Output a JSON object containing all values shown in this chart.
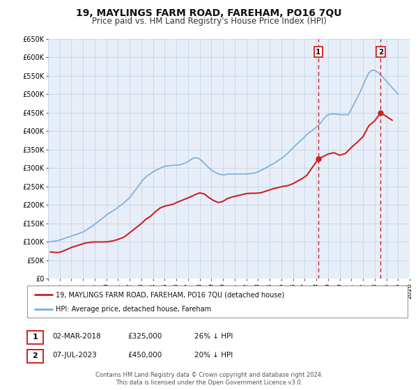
{
  "title": "19, MAYLINGS FARM ROAD, FAREHAM, PO16 7QU",
  "subtitle": "Price paid vs. HM Land Registry's House Price Index (HPI)",
  "xlim": [
    1995,
    2026
  ],
  "ylim": [
    0,
    650000
  ],
  "yticks": [
    0,
    50000,
    100000,
    150000,
    200000,
    250000,
    300000,
    350000,
    400000,
    450000,
    500000,
    550000,
    600000,
    650000
  ],
  "ytick_labels": [
    "£0",
    "£50K",
    "£100K",
    "£150K",
    "£200K",
    "£250K",
    "£300K",
    "£350K",
    "£400K",
    "£450K",
    "£500K",
    "£550K",
    "£600K",
    "£650K"
  ],
  "xticks": [
    1995,
    1996,
    1997,
    1998,
    1999,
    2000,
    2001,
    2002,
    2003,
    2004,
    2005,
    2006,
    2007,
    2008,
    2009,
    2010,
    2011,
    2012,
    2013,
    2014,
    2015,
    2016,
    2017,
    2018,
    2019,
    2020,
    2021,
    2022,
    2023,
    2024,
    2025,
    2026
  ],
  "hpi_color": "#7aaddb",
  "price_color": "#cc2222",
  "grid_color": "#c8d8e8",
  "bg_color": "#e8eef8",
  "legend_label_price": "19, MAYLINGS FARM ROAD, FAREHAM, PO16 7QU (detached house)",
  "legend_label_hpi": "HPI: Average price, detached house, Fareham",
  "ann1_date": 2018.17,
  "ann1_price": 325000,
  "ann1_label": "1",
  "ann1_text_date": "02-MAR-2018",
  "ann1_text_price": "£325,000",
  "ann1_text_pct": "26% ↓ HPI",
  "ann2_date": 2023.52,
  "ann2_price": 450000,
  "ann2_label": "2",
  "ann2_text_date": "07-JUL-2023",
  "ann2_text_price": "£450,000",
  "ann2_text_pct": "20% ↓ HPI",
  "footer1": "Contains HM Land Registry data © Crown copyright and database right 2024.",
  "footer2": "This data is licensed under the Open Government Licence v3.0.",
  "title_fontsize": 10,
  "subtitle_fontsize": 8.5,
  "hpi_x": [
    1995,
    1995.25,
    1995.5,
    1995.75,
    1996,
    1996.25,
    1996.5,
    1996.75,
    1997,
    1997.25,
    1997.5,
    1997.75,
    1998,
    1998.25,
    1998.5,
    1998.75,
    1999,
    1999.25,
    1999.5,
    1999.75,
    2000,
    2000.25,
    2000.5,
    2000.75,
    2001,
    2001.25,
    2001.5,
    2001.75,
    2002,
    2002.25,
    2002.5,
    2002.75,
    2003,
    2003.25,
    2003.5,
    2003.75,
    2004,
    2004.25,
    2004.5,
    2004.75,
    2005,
    2005.25,
    2005.5,
    2005.75,
    2006,
    2006.25,
    2006.5,
    2006.75,
    2007,
    2007.25,
    2007.5,
    2007.75,
    2008,
    2008.25,
    2008.5,
    2008.75,
    2009,
    2009.25,
    2009.5,
    2009.75,
    2010,
    2010.25,
    2010.5,
    2010.75,
    2011,
    2011.25,
    2011.5,
    2011.75,
    2012,
    2012.25,
    2012.5,
    2012.75,
    2013,
    2013.25,
    2013.5,
    2013.75,
    2014,
    2014.25,
    2014.5,
    2014.75,
    2015,
    2015.25,
    2015.5,
    2015.75,
    2016,
    2016.25,
    2016.5,
    2016.75,
    2017,
    2017.25,
    2017.5,
    2017.75,
    2018,
    2018.25,
    2018.5,
    2018.75,
    2019,
    2019.25,
    2019.5,
    2019.75,
    2020,
    2020.25,
    2020.5,
    2020.75,
    2021,
    2021.25,
    2021.5,
    2021.75,
    2022,
    2022.25,
    2022.5,
    2022.75,
    2023,
    2023.25,
    2023.5,
    2023.75,
    2024,
    2024.25,
    2024.5,
    2024.75,
    2025
  ],
  "hpi_y": [
    100000,
    101000,
    102000,
    103000,
    105000,
    108000,
    111000,
    113000,
    116000,
    119000,
    121000,
    124000,
    127000,
    132000,
    137000,
    142000,
    148000,
    154000,
    160000,
    166000,
    173000,
    178000,
    183000,
    188000,
    194000,
    200000,
    206000,
    213000,
    220000,
    231000,
    241000,
    252000,
    263000,
    272000,
    279000,
    284000,
    290000,
    294000,
    298000,
    302000,
    305000,
    306000,
    307000,
    308000,
    308000,
    309000,
    311000,
    314000,
    318000,
    323000,
    328000,
    328000,
    325000,
    318000,
    310000,
    302000,
    295000,
    290000,
    286000,
    283000,
    282000,
    283000,
    284000,
    284000,
    284000,
    284000,
    284000,
    284000,
    284000,
    285000,
    286000,
    287000,
    290000,
    294000,
    298000,
    302000,
    307000,
    311000,
    316000,
    321000,
    326000,
    332000,
    339000,
    347000,
    355000,
    363000,
    370000,
    377000,
    385000,
    393000,
    399000,
    405000,
    411000,
    418000,
    428000,
    438000,
    445000,
    446000,
    447000,
    446000,
    445000,
    445000,
    445000,
    445000,
    460000,
    475000,
    490000,
    506000,
    524000,
    542000,
    558000,
    565000,
    565000,
    560000,
    553000,
    545000,
    536000,
    527000,
    518000,
    510000,
    500000
  ],
  "price_x": [
    1995.2,
    1995.5,
    1995.8,
    1996.1,
    1996.5,
    1997.0,
    1997.5,
    1997.8,
    1998.2,
    1998.6,
    1999.0,
    1999.5,
    1999.8,
    2000.2,
    2000.6,
    2001.0,
    2001.5,
    2001.8,
    2002.2,
    2002.6,
    2003.0,
    2003.4,
    2003.8,
    2004.2,
    2004.6,
    2005.0,
    2005.4,
    2005.7,
    2006.1,
    2006.5,
    2006.9,
    2007.2,
    2007.6,
    2008.0,
    2008.4,
    2008.8,
    2009.2,
    2009.6,
    2010.0,
    2010.4,
    2010.8,
    2011.2,
    2011.6,
    2012.0,
    2012.4,
    2012.8,
    2013.2,
    2013.6,
    2014.0,
    2014.4,
    2014.8,
    2015.2,
    2015.6,
    2016.0,
    2016.4,
    2016.8,
    2017.17,
    2018.17,
    2019.0,
    2019.5,
    2020.0,
    2020.5,
    2021.0,
    2021.5,
    2022.0,
    2022.5,
    2023.0,
    2023.52,
    2024.0,
    2024.5
  ],
  "price_y": [
    73000,
    72000,
    71000,
    73000,
    78000,
    85000,
    90000,
    93000,
    97000,
    99000,
    100000,
    100000,
    100000,
    101000,
    103000,
    107000,
    113000,
    120000,
    130000,
    140000,
    150000,
    162000,
    170000,
    182000,
    192000,
    197000,
    200000,
    202000,
    208000,
    213000,
    218000,
    222000,
    228000,
    233000,
    230000,
    220000,
    212000,
    207000,
    210000,
    218000,
    222000,
    225000,
    228000,
    231000,
    232000,
    232000,
    233000,
    237000,
    241000,
    245000,
    248000,
    251000,
    253000,
    258000,
    265000,
    272000,
    280000,
    325000,
    338000,
    342000,
    335000,
    340000,
    356000,
    370000,
    385000,
    415000,
    428000,
    450000,
    440000,
    430000
  ]
}
